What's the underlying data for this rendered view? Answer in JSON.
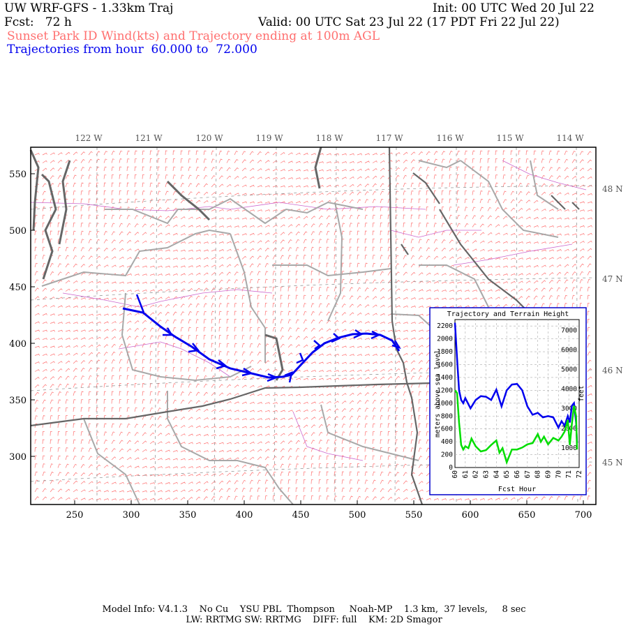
{
  "header": {
    "model": "UW WRF-GFS - 1.33km Traj",
    "init": "Init: 00 UTC Wed 20 Jul 22",
    "fcst": "Fcst:   72 h",
    "valid": "Valid: 00 UTC Sat 23 Jul 22 (17 PDT Fri 22 Jul 22)",
    "field": "Sunset Park ID Wind(kts) and Trajectory ending at 100m AGL",
    "traj_range": "Trajectories from hour  60.000 to  72.000"
  },
  "map": {
    "lon_labels": [
      "122 W",
      "121 W",
      "120 W",
      "119 W",
      "118 W",
      "117 W",
      "116 W",
      "115 W",
      "114 W"
    ],
    "lat_labels": [
      "48 N",
      "47 N",
      "46 N",
      "45 N"
    ],
    "x_ticks": [
      "250",
      "300",
      "350",
      "400",
      "450",
      "500",
      "550",
      "600",
      "650",
      "700"
    ],
    "y_ticks": [
      "550",
      "500",
      "450",
      "400",
      "350",
      "300"
    ],
    "colors": {
      "wind_barbs": "#ff6f6f",
      "trajectory": "#0000ee",
      "borders": "#aaaaaa",
      "coast": "#666666",
      "counties": "#cc66cc"
    }
  },
  "inset": {
    "title": "Trajectory and Terrain Height",
    "xlabel": "Fcst Hour",
    "ylabel_left": "meters above sea level",
    "ylabel_right": "feet",
    "left_ticks": [
      "0",
      "200",
      "400",
      "600",
      "800",
      "1000",
      "1200",
      "1400",
      "1600",
      "1800",
      "2000",
      "2200"
    ],
    "right_ticks": [
      "1000",
      "2000",
      "3000",
      "4000",
      "5000",
      "6000",
      "7000"
    ],
    "x_ticks": [
      "60",
      "61",
      "62",
      "63",
      "64",
      "65",
      "66",
      "67",
      "68",
      "69",
      "70",
      "71",
      "72"
    ],
    "colors": {
      "trajectory": "#0000ee",
      "terrain": "#00dd00",
      "frame": "#0000cc"
    }
  },
  "chart_data": {
    "type": "line",
    "title": "Trajectory and Terrain Height",
    "xlabel": "Fcst Hour",
    "ylabel": "meters above sea level",
    "xlim": [
      60,
      72
    ],
    "ylim": [
      0,
      2300
    ],
    "grid": true,
    "series": [
      {
        "x": [
          60,
          60.2,
          60.4,
          60.6,
          60.8,
          61,
          61.5,
          62,
          62.5,
          63,
          63.5,
          64,
          64.5,
          65,
          65.5,
          66,
          66.5,
          67,
          67.5,
          68,
          68.5,
          69,
          69.5,
          70,
          70.3,
          70.6,
          70.9,
          71.1,
          71.3,
          71.5,
          71.7,
          71.8
        ],
        "values": [
          2250,
          1700,
          1200,
          1050,
          1000,
          1080,
          920,
          1050,
          1110,
          1100,
          1050,
          1210,
          950,
          1200,
          1290,
          1300,
          1200,
          950,
          820,
          850,
          780,
          800,
          780,
          620,
          720,
          650,
          800,
          700,
          960,
          1000,
          700,
          380
        ]
      },
      {
        "x": [
          60,
          60.2,
          60.4,
          60.6,
          60.8,
          61,
          61.3,
          61.6,
          62,
          62.5,
          63,
          63.5,
          64,
          64.3,
          64.6,
          65,
          65.5,
          66,
          66.5,
          67,
          67.5,
          68,
          68.3,
          68.6,
          69,
          69.5,
          70,
          70.3,
          70.6,
          70.9,
          71.1,
          71.3,
          71.5,
          71.7,
          71.8
        ],
        "values": [
          1200,
          1160,
          700,
          350,
          280,
          330,
          300,
          450,
          330,
          250,
          270,
          350,
          420,
          230,
          300,
          80,
          280,
          280,
          310,
          360,
          380,
          520,
          400,
          480,
          360,
          460,
          420,
          480,
          560,
          740,
          350,
          680,
          960,
          800,
          280
        ]
      }
    ]
  }
}
